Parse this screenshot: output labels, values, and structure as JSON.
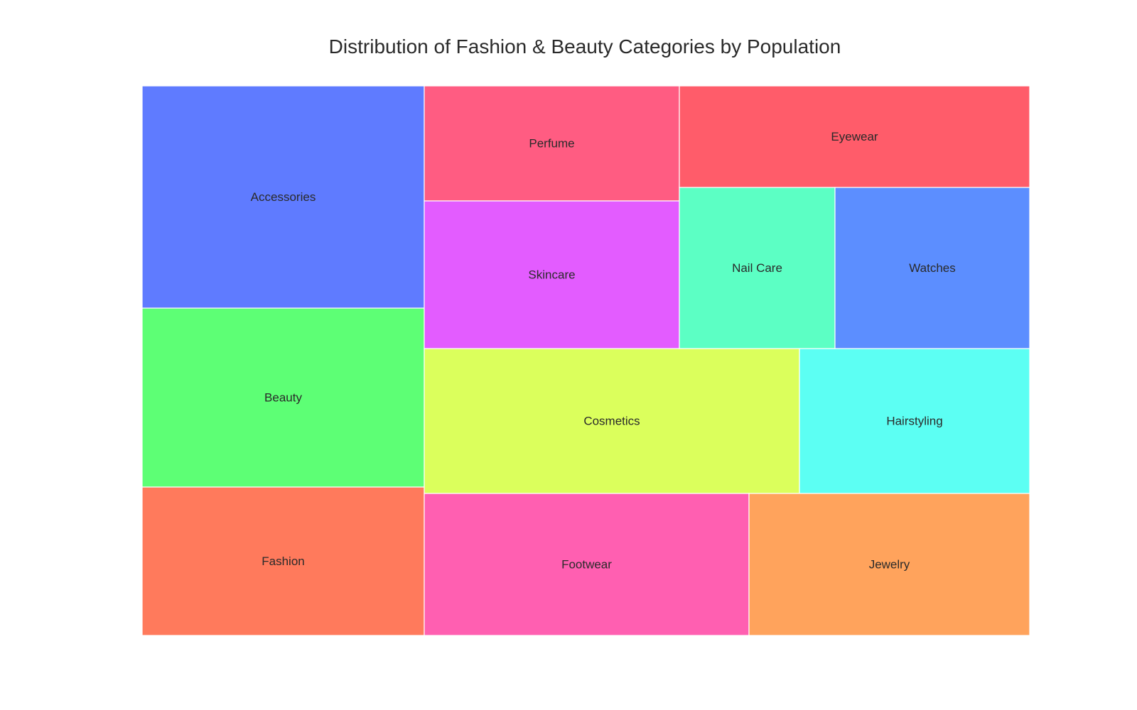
{
  "chart_data": {
    "type": "treemap",
    "title": "Distribution of Fashion & Beauty Categories by Population",
    "categories": [
      "Accessories",
      "Beauty",
      "Fashion",
      "Perfume",
      "Skincare",
      "Eyewear",
      "Nail Care",
      "Watches",
      "Cosmetics",
      "Hairstyling",
      "Footwear",
      "Jewelry"
    ],
    "colors": {
      "Accessories": "#5f7bff",
      "Beauty": "#5dff75",
      "Fashion": "#ff7a5c",
      "Perfume": "#ff5c82",
      "Skincare": "#e35cff",
      "Eyewear": "#ff5c6a",
      "Nail Care": "#5cffc4",
      "Watches": "#5c8eff",
      "Cosmetics": "#dbff5c",
      "Hairstyling": "#5cfff3",
      "Footwear": "#ff5fb1",
      "Jewelry": "#ffa35c"
    }
  }
}
